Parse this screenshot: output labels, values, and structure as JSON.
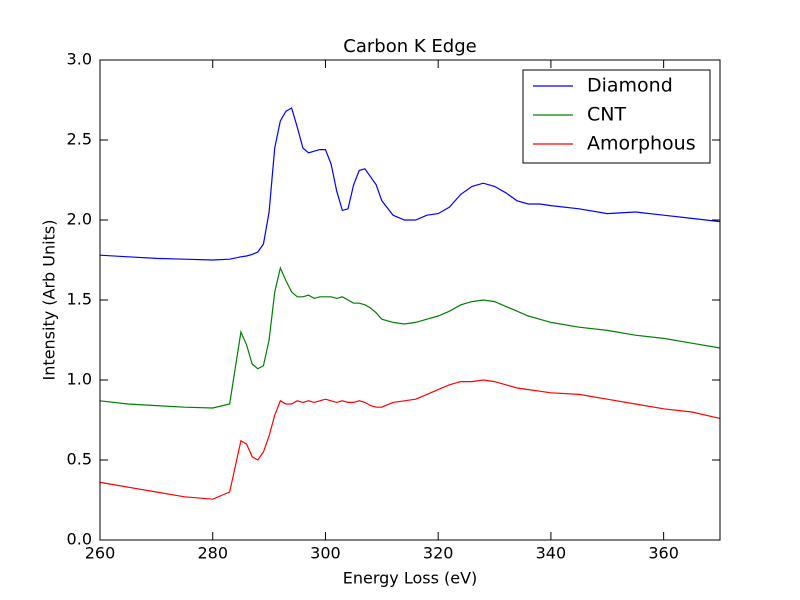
{
  "chart_data": {
    "type": "line",
    "title": "Carbon K Edge",
    "x_label": "Energy Loss (eV)",
    "y_label": "Intensity (Arb Units)",
    "x": [
      260,
      265,
      270,
      275,
      280,
      283,
      285,
      286,
      287,
      288,
      289,
      290,
      291,
      292,
      293,
      294,
      295,
      296,
      297,
      298,
      299,
      300,
      301,
      302,
      303,
      304,
      305,
      306,
      307,
      308,
      309,
      310,
      312,
      314,
      316,
      318,
      320,
      322,
      324,
      326,
      328,
      330,
      332,
      334,
      336,
      338,
      340,
      345,
      350,
      355,
      360,
      365,
      370
    ],
    "series": [
      {
        "name": "Diamond",
        "color": "#0000ff",
        "values": [
          1.78,
          1.77,
          1.76,
          1.755,
          1.75,
          1.755,
          1.77,
          1.775,
          1.785,
          1.8,
          1.85,
          2.05,
          2.45,
          2.62,
          2.68,
          2.7,
          2.58,
          2.45,
          2.42,
          2.43,
          2.44,
          2.44,
          2.35,
          2.18,
          2.06,
          2.07,
          2.22,
          2.31,
          2.32,
          2.27,
          2.22,
          2.12,
          2.03,
          2.0,
          2.0,
          2.03,
          2.04,
          2.08,
          2.16,
          2.21,
          2.23,
          2.21,
          2.17,
          2.12,
          2.1,
          2.1,
          2.09,
          2.07,
          2.04,
          2.05,
          2.03,
          2.01,
          1.99
        ]
      },
      {
        "name": "CNT",
        "color": "#008000",
        "values": [
          0.87,
          0.85,
          0.84,
          0.83,
          0.825,
          0.85,
          1.3,
          1.22,
          1.1,
          1.07,
          1.09,
          1.25,
          1.55,
          1.7,
          1.62,
          1.55,
          1.52,
          1.52,
          1.53,
          1.51,
          1.52,
          1.52,
          1.52,
          1.51,
          1.52,
          1.5,
          1.48,
          1.48,
          1.47,
          1.45,
          1.42,
          1.38,
          1.36,
          1.35,
          1.36,
          1.38,
          1.4,
          1.43,
          1.47,
          1.49,
          1.5,
          1.49,
          1.46,
          1.43,
          1.4,
          1.38,
          1.36,
          1.33,
          1.31,
          1.28,
          1.26,
          1.23,
          1.2
        ]
      },
      {
        "name": "Amorphous",
        "color": "#ff0000",
        "values": [
          0.36,
          0.33,
          0.3,
          0.27,
          0.255,
          0.3,
          0.62,
          0.6,
          0.52,
          0.5,
          0.55,
          0.65,
          0.78,
          0.87,
          0.85,
          0.85,
          0.87,
          0.86,
          0.87,
          0.86,
          0.87,
          0.88,
          0.87,
          0.86,
          0.87,
          0.86,
          0.86,
          0.87,
          0.86,
          0.84,
          0.83,
          0.83,
          0.86,
          0.87,
          0.88,
          0.91,
          0.94,
          0.97,
          0.99,
          0.99,
          1.0,
          0.99,
          0.97,
          0.95,
          0.94,
          0.93,
          0.92,
          0.91,
          0.88,
          0.85,
          0.82,
          0.8,
          0.76
        ]
      }
    ],
    "xlim": [
      260,
      370
    ],
    "xticks": [
      260,
      280,
      300,
      320,
      340,
      360
    ],
    "ylim": [
      0,
      3
    ],
    "yticks": [
      {
        "value": 0,
        "label": "0.0"
      },
      0.5,
      {
        "value": 1,
        "label": "1.0"
      },
      1.5,
      {
        "value": 2,
        "label": "2.0"
      },
      2.5,
      {
        "value": 3,
        "label": "3.0"
      }
    ],
    "legend": "upper right"
  }
}
